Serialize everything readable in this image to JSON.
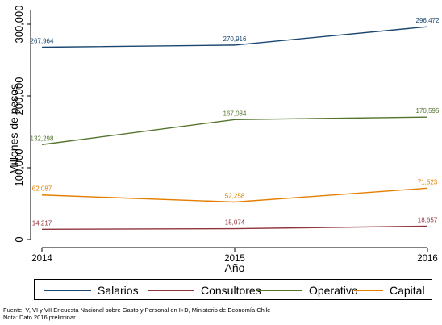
{
  "chart_data": {
    "type": "line",
    "x": [
      2014,
      2015,
      2016
    ],
    "xlabel": "Año",
    "ylabel": "Millones de pesos",
    "ylim": [
      0,
      300000
    ],
    "yticks": [
      "0",
      "100,000",
      "200,000",
      "300,000"
    ],
    "xticks": [
      "2014",
      "2015",
      "2016"
    ],
    "legend_position": "bottom",
    "series": [
      {
        "name": "Salarios",
        "color": "#1a476f",
        "values": [
          267964,
          270916,
          296472
        ],
        "labels": [
          "267,964",
          "270,916",
          "296,472"
        ]
      },
      {
        "name": "Consultores",
        "color": "#90353b",
        "values": [
          14217,
          15074,
          18657
        ],
        "labels": [
          "14,217",
          "15,074",
          "18,657"
        ]
      },
      {
        "name": "Operativo",
        "color": "#55752f",
        "values": [
          132298,
          167084,
          170595
        ],
        "labels": [
          "132,298",
          "167,084",
          "170,595"
        ]
      },
      {
        "name": "Capital",
        "color": "#e37e00",
        "values": [
          62087,
          52258,
          71523
        ],
        "labels": [
          "62,087",
          "52,258",
          "71,523"
        ]
      }
    ]
  },
  "notes": {
    "source": "Fuente: V, VI y VII Encuesta Nacional sobre Gasto y Personal en I+D, Ministerio de Economía Chile",
    "note": "Nota: Dato 2016 preliminar"
  }
}
